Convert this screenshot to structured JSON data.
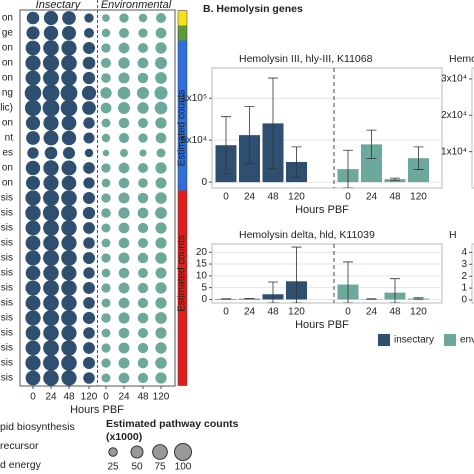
{
  "section_title": "B. Hemolysin genes",
  "legend": [
    {
      "name": "insectary",
      "color": "#2f4f70"
    },
    {
      "name": "enviro",
      "color": "#6ca89c"
    }
  ],
  "chart_data": [
    {
      "type": "dot",
      "groups": [
        "Insectary",
        "Environmental"
      ],
      "categories": [
        "0",
        "24",
        "48",
        "120"
      ],
      "xlabel": "Hours PBF",
      "rows": [
        "on",
        "ge",
        "on",
        "on",
        "on",
        "ng",
        "lic)",
        "on",
        "nt",
        "es",
        "on",
        "on",
        "sis",
        "sis",
        "sis",
        "sis",
        "sis",
        "sis",
        "sis",
        "sis",
        "sis",
        "sis",
        "sis",
        "sis",
        "sis"
      ],
      "row_colors": [
        "#f3e11c",
        "#5e9a3a",
        "#2e6fdc",
        "#2e6fdc",
        "#2e6fdc",
        "#2e6fdc",
        "#2e6fdc",
        "#2e6fdc",
        "#2e6fdc",
        "#2e6fdc",
        "#2e6fdc",
        "#2e6fdc",
        "#e0201c",
        "#e0201c",
        "#e0201c",
        "#e0201c",
        "#e0201c",
        "#e0201c",
        "#e0201c",
        "#e0201c",
        "#e0201c",
        "#e0201c",
        "#e0201c",
        "#e0201c",
        "#e0201c"
      ],
      "values": [
        [
          55,
          70,
          65,
          30,
          20,
          30,
          25,
          35
        ],
        [
          60,
          72,
          68,
          35,
          25,
          35,
          30,
          40
        ],
        [
          75,
          85,
          80,
          50,
          30,
          40,
          35,
          45
        ],
        [
          80,
          90,
          85,
          55,
          35,
          45,
          40,
          50
        ],
        [
          78,
          88,
          84,
          52,
          32,
          42,
          38,
          48
        ],
        [
          95,
          100,
          98,
          70,
          45,
          55,
          50,
          60
        ],
        [
          90,
          98,
          95,
          65,
          40,
          50,
          45,
          55
        ],
        [
          70,
          80,
          75,
          45,
          28,
          38,
          34,
          44
        ],
        [
          65,
          78,
          72,
          42,
          25,
          36,
          30,
          40
        ],
        [
          45,
          55,
          50,
          25,
          15,
          22,
          18,
          28
        ],
        [
          72,
          82,
          78,
          48,
          30,
          40,
          35,
          45
        ],
        [
          68,
          80,
          74,
          44,
          26,
          38,
          32,
          42
        ],
        [
          80,
          88,
          84,
          50,
          30,
          42,
          38,
          46
        ],
        [
          82,
          90,
          86,
          52,
          32,
          44,
          40,
          48
        ],
        [
          78,
          86,
          82,
          48,
          28,
          40,
          36,
          44
        ],
        [
          76,
          84,
          80,
          46,
          27,
          39,
          35,
          43
        ],
        [
          80,
          88,
          84,
          50,
          30,
          42,
          38,
          46
        ],
        [
          74,
          82,
          78,
          45,
          26,
          38,
          34,
          42
        ],
        [
          79,
          87,
          83,
          49,
          29,
          41,
          37,
          45
        ],
        [
          77,
          85,
          81,
          47,
          28,
          40,
          36,
          44
        ],
        [
          81,
          89,
          85,
          51,
          31,
          43,
          39,
          47
        ],
        [
          75,
          83,
          79,
          46,
          27,
          39,
          35,
          43
        ],
        [
          78,
          86,
          82,
          48,
          29,
          41,
          37,
          45
        ],
        [
          80,
          88,
          84,
          50,
          30,
          42,
          38,
          46
        ],
        [
          76,
          84,
          80,
          46,
          28,
          40,
          36,
          44
        ]
      ],
      "size_legend": {
        "title": "Estimated  pathway counts",
        "subtitle": "(x1000)",
        "values": [
          25,
          50,
          75,
          100
        ]
      },
      "row_legend": [
        "pid biosynthesis",
        "recursor",
        "d energy"
      ]
    },
    {
      "type": "bar",
      "title": "Hemolysin III, hly-III, K11068",
      "ylabel": "Estimated counts",
      "xlabel": "Hours PBF",
      "categories": [
        "0",
        "24",
        "48",
        "120"
      ],
      "series": [
        {
          "values": [
            44000,
            56000,
            70000,
            24000
          ],
          "errors": [
            34000,
            34000,
            54000,
            18000
          ]
        },
        {
          "values": [
            15500,
            45000,
            3500,
            28500
          ],
          "errors": [
            22500,
            17000,
            1300,
            13500
          ]
        }
      ],
      "ylim": [
        -7000,
        136000
      ],
      "yticks": [
        0,
        {
          "value": 50000,
          "label": "5x10⁴"
        },
        {
          "value": 100000,
          "label": "1x10⁵"
        }
      ]
    },
    {
      "type": "bar",
      "title": "Hemo",
      "ylim": [
        0,
        33000
      ],
      "yticks": [
        {
          "value": 10000,
          "label": "1x10⁴"
        },
        {
          "value": 20000,
          "label": "2x10⁴"
        },
        {
          "value": 30000,
          "label": "3x10⁴"
        }
      ]
    },
    {
      "type": "bar",
      "title": "Hemolysin delta, hld, K11039",
      "ylabel": "Estimated counts",
      "xlabel": "Hours PBF",
      "categories": [
        "0",
        "24",
        "48",
        "120"
      ],
      "series": [
        {
          "values": [
            0.2,
            0.3,
            2.2,
            7.7
          ],
          "errors": [
            0.1,
            0.1,
            5.2,
            14.5
          ]
        },
        {
          "values": [
            6.3,
            0.2,
            2.9,
            0.4
          ],
          "errors": [
            9.6,
            0.1,
            5.9,
            0.3
          ]
        }
      ],
      "ylim": [
        -1.5,
        23.5
      ],
      "yticks": [
        0,
        5,
        10,
        15,
        20
      ]
    },
    {
      "type": "bar",
      "title": "H",
      "ylim": [
        -0.25,
        4.7
      ],
      "yticks": [
        0,
        1,
        2,
        3,
        4
      ]
    }
  ]
}
